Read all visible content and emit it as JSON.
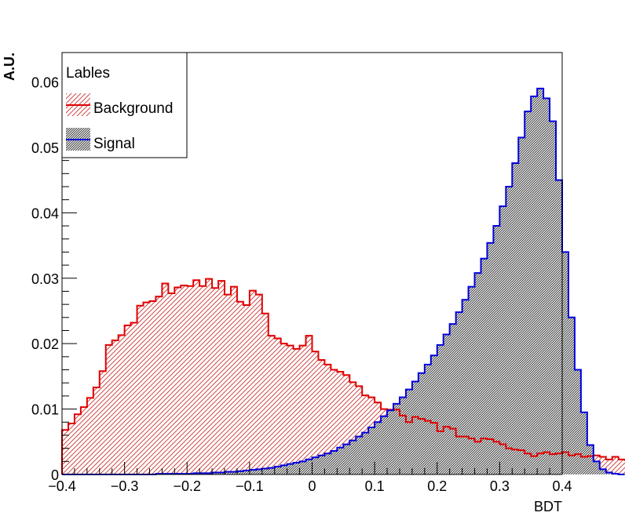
{
  "chart_data": {
    "type": "histogram",
    "xlabel": "BDT",
    "ylabel": "A.U.",
    "xlim": [
      -0.4,
      0.4
    ],
    "ylim": [
      0,
      0.0645
    ],
    "x_ticks": [
      -0.4,
      -0.3,
      -0.2,
      -0.1,
      0,
      0.1,
      0.2,
      0.3,
      0.4
    ],
    "x_tick_labels": [
      "−0.4",
      "−0.3",
      "−0.2",
      "−0.1",
      "0",
      "0.1",
      "0.2",
      "0.3",
      "0.4"
    ],
    "y_ticks": [
      0,
      0.01,
      0.02,
      0.03,
      0.04,
      0.05,
      0.06
    ],
    "y_tick_labels": [
      "0",
      "0.01",
      "0.02",
      "0.03",
      "0.04",
      "0.05",
      "0.06"
    ],
    "bin_width": 0.01,
    "bin_start": -0.4,
    "legend": {
      "title": "Lables",
      "position": "top-left",
      "entries": [
        "Background",
        "Signal"
      ]
    },
    "series": [
      {
        "name": "Background",
        "color": "#e00000",
        "fill": "diagonal-hatch",
        "values": [
          0.0068,
          0.0078,
          0.0092,
          0.0103,
          0.0117,
          0.0133,
          0.0158,
          0.0198,
          0.0205,
          0.0213,
          0.0228,
          0.0232,
          0.0258,
          0.0263,
          0.0265,
          0.0272,
          0.0292,
          0.0277,
          0.0286,
          0.0289,
          0.0288,
          0.0297,
          0.0288,
          0.0299,
          0.0285,
          0.0296,
          0.0275,
          0.0287,
          0.0264,
          0.0259,
          0.0281,
          0.0275,
          0.0246,
          0.0212,
          0.0208,
          0.02,
          0.0197,
          0.0192,
          0.0197,
          0.0212,
          0.0188,
          0.0175,
          0.0168,
          0.016,
          0.0157,
          0.0152,
          0.0141,
          0.0135,
          0.0121,
          0.0118,
          0.011,
          0.01,
          0.0099,
          0.0099,
          0.009,
          0.008,
          0.0088,
          0.0085,
          0.0082,
          0.0079,
          0.0066,
          0.0073,
          0.007,
          0.0058,
          0.0058,
          0.0055,
          0.005,
          0.0055,
          0.0054,
          0.005,
          0.0046,
          0.004,
          0.0038,
          0.0037,
          0.0032,
          0.0028,
          0.0032,
          0.0034,
          0.0031,
          0.0032,
          0.0034,
          0.0029,
          0.0031,
          0.0027,
          0.0028,
          0.0029,
          0.0027,
          0.0023,
          0.0027,
          0.0023,
          0.0022,
          0.0018,
          0.0015,
          0.0013,
          0.001,
          0.0006,
          0.0004,
          0.0003,
          0.0001,
          0.0
        ]
      },
      {
        "name": "Signal",
        "color": "#0000dd",
        "fill": "dense-hatch",
        "values": [
          0.0,
          0.0,
          0.0,
          0.0,
          0.0,
          0.0,
          0.0,
          0.0,
          0.0,
          0.0,
          0.0,
          0.0,
          0.0,
          0.0,
          0.0,
          0.0001,
          0.0001,
          0.0001,
          0.0001,
          0.0001,
          0.0001,
          0.0002,
          0.0002,
          0.0002,
          0.0003,
          0.0003,
          0.0004,
          0.0004,
          0.0005,
          0.0006,
          0.0007,
          0.0008,
          0.0009,
          0.001,
          0.0012,
          0.0014,
          0.0016,
          0.0018,
          0.002,
          0.0023,
          0.0026,
          0.0029,
          0.0032,
          0.0036,
          0.0041,
          0.0046,
          0.0052,
          0.0058,
          0.0064,
          0.0072,
          0.008,
          0.0089,
          0.0098,
          0.0108,
          0.0118,
          0.013,
          0.0142,
          0.0155,
          0.0168,
          0.0182,
          0.0198,
          0.0214,
          0.023,
          0.0248,
          0.0267,
          0.0287,
          0.0308,
          0.033,
          0.0354,
          0.038,
          0.041,
          0.044,
          0.0476,
          0.0515,
          0.0555,
          0.0578,
          0.059,
          0.0575,
          0.054,
          0.045,
          0.034,
          0.024,
          0.016,
          0.0095,
          0.0045,
          0.002,
          0.0008,
          0.0003,
          0.0001,
          0.0
        ]
      }
    ]
  }
}
